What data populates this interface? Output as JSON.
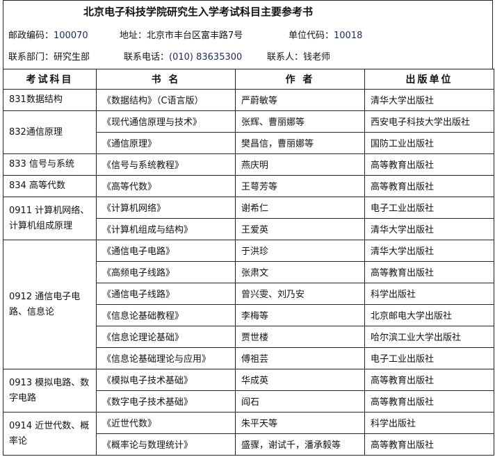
{
  "title": "北京电子科技学院研究生入学考试科目主要参考书",
  "info": {
    "postcode_label": "邮政编码：",
    "postcode": "100070",
    "address_label": "地址：",
    "address": "北京市丰台区富丰路7号",
    "unit_code_label": "单位代码：",
    "unit_code": "10018",
    "department_label": "联系部门：",
    "department": "研究生部",
    "phone_label": "联系电话：",
    "phone": "(010) 83635300",
    "contact_label": "联系人：",
    "contact": "钱老师"
  },
  "columns": [
    "考试科目",
    "书 名",
    "作 者",
    "出版单位"
  ],
  "subjects": [
    {
      "name": "831数据结构",
      "books": [
        {
          "title": "《数据结构》（C语言版）",
          "author": "严蔚敏等",
          "publisher": "清华大学出版社"
        }
      ]
    },
    {
      "name": "832通信原理",
      "books": [
        {
          "title": "《现代通信原理与技术》",
          "author": "张辉、曹丽娜等",
          "publisher": "西安电子科技大学出版社"
        },
        {
          "title": "《通信原理》",
          "author": "樊昌信，曹丽娜等",
          "publisher": "国防工业出版社"
        }
      ]
    },
    {
      "name": "833 信号与系统",
      "books": [
        {
          "title": "《信号与系统教程》",
          "author": "燕庆明",
          "publisher": "高等教育出版社"
        }
      ]
    },
    {
      "name": "834 高等代数",
      "books": [
        {
          "title": "《高等代数》",
          "author": "王萼芳等",
          "publisher": "高等教育出版社"
        }
      ]
    },
    {
      "name": "0911 计算机网络、计算机组成原理",
      "books": [
        {
          "title": "《计算机网络》",
          "author": "谢希仁",
          "publisher": "电子工业出版社"
        },
        {
          "title": "《计算机组成与结构》",
          "author": "王爱英",
          "publisher": "清华大学出版社"
        }
      ]
    },
    {
      "name": "0912 通信电子电路、信息论",
      "books": [
        {
          "title": "《通信电子电路》",
          "author": "于洪珍",
          "publisher": "清华大学出版社"
        },
        {
          "title": "《高频电子线路》",
          "author": "张肃文",
          "publisher": "高等教育出版社"
        },
        {
          "title": "《通信电子线路》",
          "author": "曾兴雯、刘乃安",
          "publisher": "科学出版社"
        },
        {
          "title": "《信息论基础教程》",
          "author": "李梅等",
          "publisher": "北京邮电大学出版社"
        },
        {
          "title": "《信息论理论基础》",
          "author": "贾世楼",
          "publisher": "哈尔滨工业大学出版社"
        },
        {
          "title": "《信息论基础理论与应用》",
          "author": "傅祖芸",
          "publisher": "电子工业出版社"
        }
      ]
    },
    {
      "name": "0913 模拟电路、数字电路",
      "books": [
        {
          "title": "《模拟电子技术基础》",
          "author": "华成英",
          "publisher": "高等教育出版社"
        },
        {
          "title": "《数字电子技术基础》",
          "author": "阎石",
          "publisher": "高等教育出版社"
        }
      ]
    },
    {
      "name": "0914 近世代数、概率论",
      "books": [
        {
          "title": "《近世代数》",
          "author": "朱平天等",
          "publisher": "科学出版社"
        },
        {
          "title": "《概率论与数理统计》",
          "author": "盛骤，谢试千，潘承毅等",
          "publisher": "高等教育出版社"
        }
      ]
    }
  ]
}
